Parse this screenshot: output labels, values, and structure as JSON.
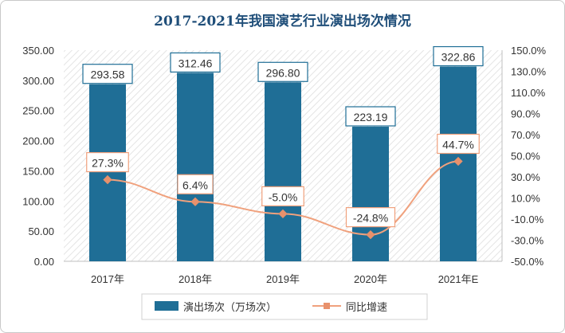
{
  "chart_data": {
    "type": "bar",
    "title": "2017-2021年我国演艺行业演出场次情况",
    "categories": [
      "2017年",
      "2018年",
      "2019年",
      "2020年",
      "2021年E"
    ],
    "series": [
      {
        "name": "演出场次（万场次）",
        "type": "bar",
        "axis": "left",
        "values": [
          293.58,
          312.46,
          296.8,
          223.19,
          322.86
        ],
        "labels": [
          "293.58",
          "312.46",
          "296.80",
          "223.19",
          "322.86"
        ]
      },
      {
        "name": "同比增速",
        "type": "line",
        "axis": "right",
        "values": [
          27.3,
          6.4,
          -5.0,
          -24.8,
          44.7
        ],
        "labels": [
          "27.3%",
          "6.4%",
          "-5.0%",
          "-24.8%",
          "44.7%"
        ]
      }
    ],
    "y_left": {
      "ylim": [
        0,
        350
      ],
      "ticks": [
        "0.00",
        "50.00",
        "100.00",
        "150.00",
        "200.00",
        "250.00",
        "300.00",
        "350.00"
      ]
    },
    "y_right": {
      "ylim": [
        -50,
        150
      ],
      "ticks": [
        "-50.0%",
        "-30.0%",
        "-10.0%",
        "10.0%",
        "30.0%",
        "50.0%",
        "70.0%",
        "90.0%",
        "110.0%",
        "130.0%",
        "150.0%"
      ]
    },
    "legend_position": "bottom",
    "colors": {
      "bar": "#1f6e96",
      "line": "#f0a17d",
      "marker": "#e8916c",
      "title": "#1f4e79",
      "label_border": "#1f6e96"
    }
  }
}
